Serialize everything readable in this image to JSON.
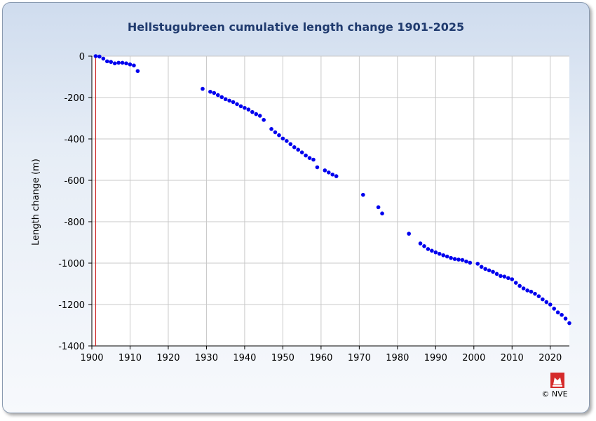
{
  "chart_data": {
    "type": "scatter",
    "title": "Hellstugubreen cumulative length change 1901-2025",
    "xlabel": "",
    "ylabel": "Length change (m)",
    "xlim": [
      1900,
      2025
    ],
    "ylim": [
      -1400,
      0
    ],
    "xticks": [
      1900,
      1910,
      1920,
      1930,
      1940,
      1950,
      1960,
      1970,
      1980,
      1990,
      2000,
      2010,
      2020
    ],
    "yticks": [
      0,
      -200,
      -400,
      -600,
      -800,
      -1000,
      -1200,
      -1400
    ],
    "grid": true,
    "reference_line_x": 1901,
    "colors": {
      "points": "#0000ee",
      "reference_line": "#cc2222",
      "title": "#1f3a6e"
    },
    "series": [
      {
        "x": [
          1901,
          1902,
          1903,
          1904,
          1905,
          1906,
          1907,
          1908,
          1909,
          1910,
          1911,
          1912,
          1929,
          1931,
          1932,
          1933,
          1934,
          1935,
          1936,
          1937,
          1938,
          1939,
          1940,
          1941,
          1942,
          1943,
          1944,
          1945,
          1947,
          1948,
          1949,
          1950,
          1951,
          1952,
          1953,
          1954,
          1955,
          1956,
          1957,
          1958,
          1959,
          1961,
          1962,
          1963,
          1964,
          1971,
          1975,
          1976,
          1983,
          1986,
          1987,
          1988,
          1989,
          1990,
          1991,
          1992,
          1993,
          1994,
          1995,
          1996,
          1997,
          1998,
          1999,
          2001,
          2002,
          2003,
          2004,
          2005,
          2006,
          2007,
          2008,
          2009,
          2010,
          2011,
          2012,
          2013,
          2014,
          2015,
          2016,
          2017,
          2018,
          2019,
          2020,
          2021,
          2022,
          2023,
          2024,
          2025
        ],
        "values": [
          0,
          -2,
          -12,
          -25,
          -28,
          -35,
          -32,
          -32,
          -35,
          -40,
          -45,
          -72,
          -158,
          -172,
          -178,
          -188,
          -198,
          -208,
          -215,
          -222,
          -232,
          -242,
          -250,
          -258,
          -270,
          -280,
          -288,
          -308,
          -352,
          -368,
          -382,
          -398,
          -410,
          -425,
          -440,
          -452,
          -465,
          -480,
          -492,
          -500,
          -537,
          -552,
          -562,
          -572,
          -580,
          -670,
          -730,
          -760,
          -858,
          -905,
          -918,
          -932,
          -940,
          -948,
          -955,
          -962,
          -968,
          -975,
          -980,
          -983,
          -985,
          -992,
          -998,
          -1003,
          -1018,
          -1028,
          -1035,
          -1042,
          -1052,
          -1062,
          -1065,
          -1072,
          -1078,
          -1095,
          -1110,
          -1122,
          -1132,
          -1138,
          -1148,
          -1160,
          -1175,
          -1188,
          -1200,
          -1220,
          -1238,
          -1250,
          -1268,
          -1290
        ]
      }
    ]
  },
  "footer": {
    "copyright": "© NVE"
  }
}
